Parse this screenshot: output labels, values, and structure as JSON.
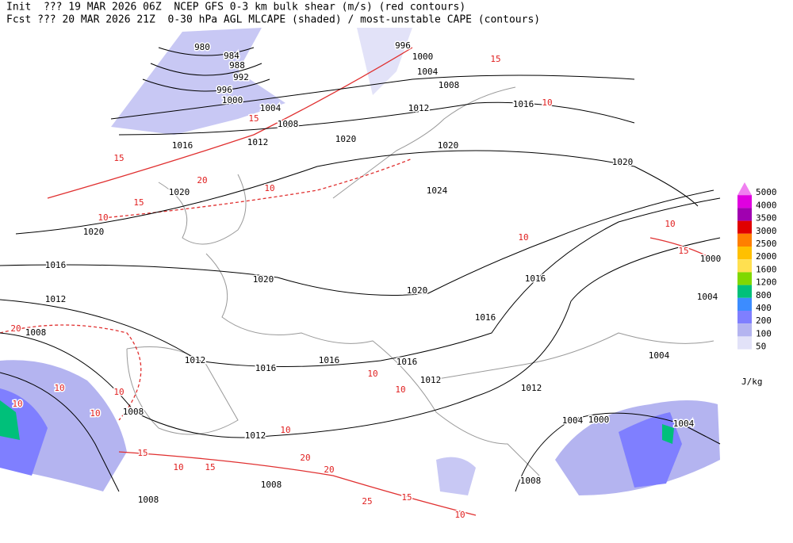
{
  "header": {
    "line1": "Init  ??? 19 MAR 2026 06Z  NCEP GFS 0-3 km bulk shear (m/s) (red contours)",
    "line2": "Fcst ??? 20 MAR 2026 21Z  0-30 hPa AGL MLCAPE (shaded) / most-unstable CAPE (contours)"
  },
  "legend": {
    "levels": [
      "5000",
      "4000",
      "3500",
      "3000",
      "2500",
      "2000",
      "1600",
      "1200",
      "800",
      "400",
      "200",
      "100",
      "50"
    ],
    "colors": [
      "#f080f0",
      "#e000e0",
      "#a000b0",
      "#e00000",
      "#ff7f00",
      "#ffc000",
      "#ffe050",
      "#80d800",
      "#00c07a",
      "#3c8cff",
      "#7f7fff",
      "#b4b4f0",
      "#e2e2f8"
    ],
    "unit": "J/kg"
  },
  "contour_labels": {
    "isobars": [
      "980",
      "984",
      "988",
      "992",
      "996",
      "1000",
      "1004",
      "1008",
      "1012",
      "1016",
      "1020",
      "1020",
      "1016",
      "1012",
      "1008",
      "1020",
      "1012",
      "1016",
      "1016",
      "1016",
      "1012",
      "1016",
      "1016",
      "1020",
      "1024",
      "1020",
      "1020",
      "1020",
      "1016",
      "1012",
      "1008",
      "1004",
      "1000",
      "996",
      "1012",
      "1008",
      "1012",
      "1008",
      "1008",
      "1008",
      "1004",
      "1000",
      "1004",
      "1004",
      "1004",
      "1000"
    ],
    "shear": [
      "15",
      "10",
      "15",
      "10",
      "20",
      "15",
      "10",
      "10",
      "10",
      "25",
      "15",
      "10",
      "20",
      "20",
      "15",
      "10",
      "10",
      "10",
      "10",
      "10",
      "15",
      "10",
      "15",
      "10",
      "20",
      "15",
      "10"
    ]
  }
}
